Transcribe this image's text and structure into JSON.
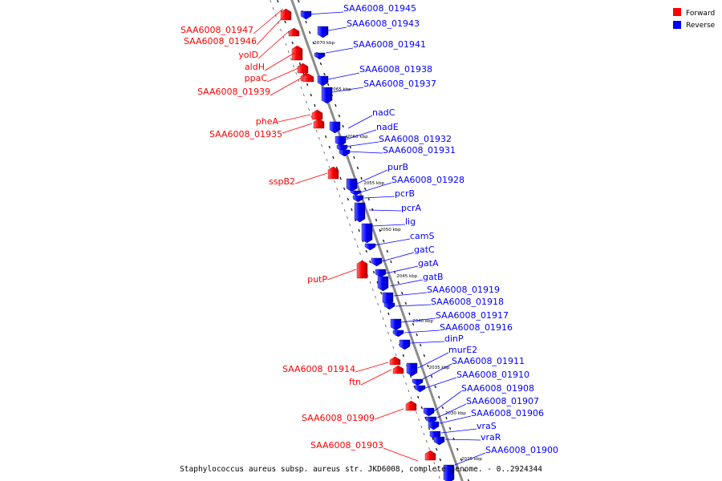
{
  "colors": {
    "forward": "#ff0000",
    "reverse": "#0000ff",
    "backbone": "#8c8c8c",
    "leader": "#000000"
  },
  "legend": [
    {
      "label": "Forward",
      "color": "#ff0000"
    },
    {
      "label": "Reverse",
      "color": "#0000ff"
    }
  ],
  "caption": "Staphylococcus aureus subsp. aureus str. JKD6008, complete genome. - 0..2924344",
  "kbp_ticks": [
    "2070 kbp",
    "2065 kbp",
    "2060 kbp",
    "2055 kbp",
    "2050 kbp",
    "2045 kbp",
    "2040 kbp",
    "2035 kbp",
    "2030 kbp",
    "2025 kbp"
  ],
  "forward_genes": [
    "SAA6008_01947",
    "SAA6008_01946",
    "yolD",
    "aldH",
    "ppaC",
    "SAA6008_01939",
    "pheA",
    "SAA6008_01935",
    "sspB2",
    "putP",
    "SAA6008_01914",
    "ftn",
    "SAA6008_01909",
    "SAA6008_01903"
  ],
  "reverse_genes": [
    "SAA6008_01945",
    "SAA6008_01943",
    "SAA6008_01941",
    "SAA6008_01938",
    "SAA6008_01937",
    "nadC",
    "nadE",
    "SAA6008_01932",
    "SAA6008_01931",
    "purB",
    "SAA6008_01928",
    "pcrB",
    "pcrA",
    "lig",
    "camS",
    "gatC",
    "gatA",
    "gatB",
    "SAA6008_01919",
    "SAA6008_01918",
    "SAA6008_01917",
    "SAA6008_01916",
    "dinP",
    "murE2",
    "SAA6008_01911",
    "SAA6008_01910",
    "SAA6008_01908",
    "SAA6008_01907",
    "SAA6008_01906",
    "vraS",
    "vraR",
    "SAA6008_01900"
  ]
}
